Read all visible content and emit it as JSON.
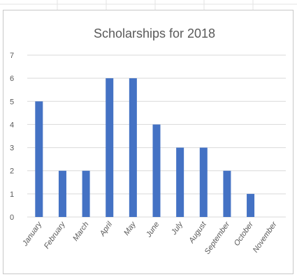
{
  "chart_data": {
    "type": "bar",
    "title": "Scholarships for 2018",
    "categories": [
      "January",
      "February",
      "March",
      "April",
      "May",
      "June",
      "July",
      "August",
      "September",
      "October",
      "November"
    ],
    "values": [
      5,
      2,
      2,
      6,
      6,
      4,
      3,
      3,
      2,
      1,
      0
    ],
    "ylim": [
      0,
      7
    ],
    "yticks": [
      0,
      1,
      2,
      3,
      4,
      5,
      6,
      7
    ],
    "grid": true,
    "legend": "none",
    "bar_color": "#4472C4",
    "gridline_color": "#d9d9d9",
    "text_color": "#595959"
  }
}
